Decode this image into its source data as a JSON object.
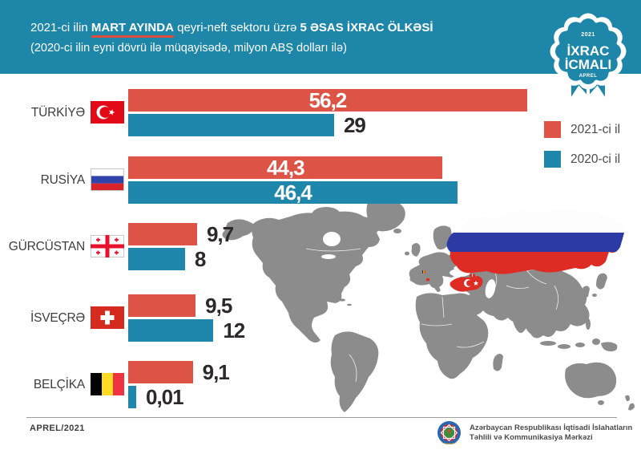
{
  "header": {
    "title_prefix": "2021-ci ilin ",
    "title_highlight": "MART AYINDA",
    "title_middle": " qeyri-neft sektoru üzrə ",
    "title_bold": "5 ƏSAS İXRAC ÖLKƏSİ",
    "subtitle": "(2020-ci ilin eyni dövrü ilə müqayisədə, milyon ABŞ dolları ilə)"
  },
  "badge": {
    "year": "2021",
    "title_line1": "İXRAC",
    "title_line2": "İCMALI",
    "month": "APREL"
  },
  "legend": {
    "items": [
      {
        "label": "2021-ci il",
        "color": "#DD5346"
      },
      {
        "label": "2020-ci il",
        "color": "#1F87AC"
      }
    ]
  },
  "chart_data": {
    "type": "bar",
    "orientation": "horizontal",
    "title": "2021-ci ilin MART AYINDA qeyri-neft sektoru üzrə 5 əsas ixrac ölkəsi",
    "subtitle": "2020-ci ilin eyni dövrü ilə müqayisədə, milyon ABŞ dolları ilə",
    "categories": [
      "TÜRKİYƏ",
      "RUSİYA",
      "GÜRCÜSTAN",
      "İSVEÇRƏ",
      "BELÇİKA"
    ],
    "series": [
      {
        "name": "2021-ci il",
        "color": "#DD5346",
        "values": [
          56.2,
          44.3,
          9.7,
          9.5,
          9.1
        ]
      },
      {
        "name": "2020-ci il",
        "color": "#1F87AC",
        "values": [
          29,
          46.4,
          8,
          12,
          0.01
        ]
      }
    ],
    "value_labels": [
      [
        "56,2",
        "29"
      ],
      [
        "44,3",
        "46,4"
      ],
      [
        "9,7",
        "8"
      ],
      [
        "9,5",
        "12"
      ],
      [
        "9,1",
        "0,01"
      ]
    ],
    "xlim": [
      0,
      60
    ],
    "legend_position": "right",
    "flags": [
      "turkey-flag",
      "russia-flag",
      "georgia-flag",
      "switzerland-flag",
      "belgium-flag"
    ]
  },
  "footer": {
    "date": "APREL/2021",
    "org_line1": "Azərbaycan Respublikası İqtisadi İslahatların",
    "org_line2": "Təhlili və Kommunikasiya Mərkəzi"
  }
}
